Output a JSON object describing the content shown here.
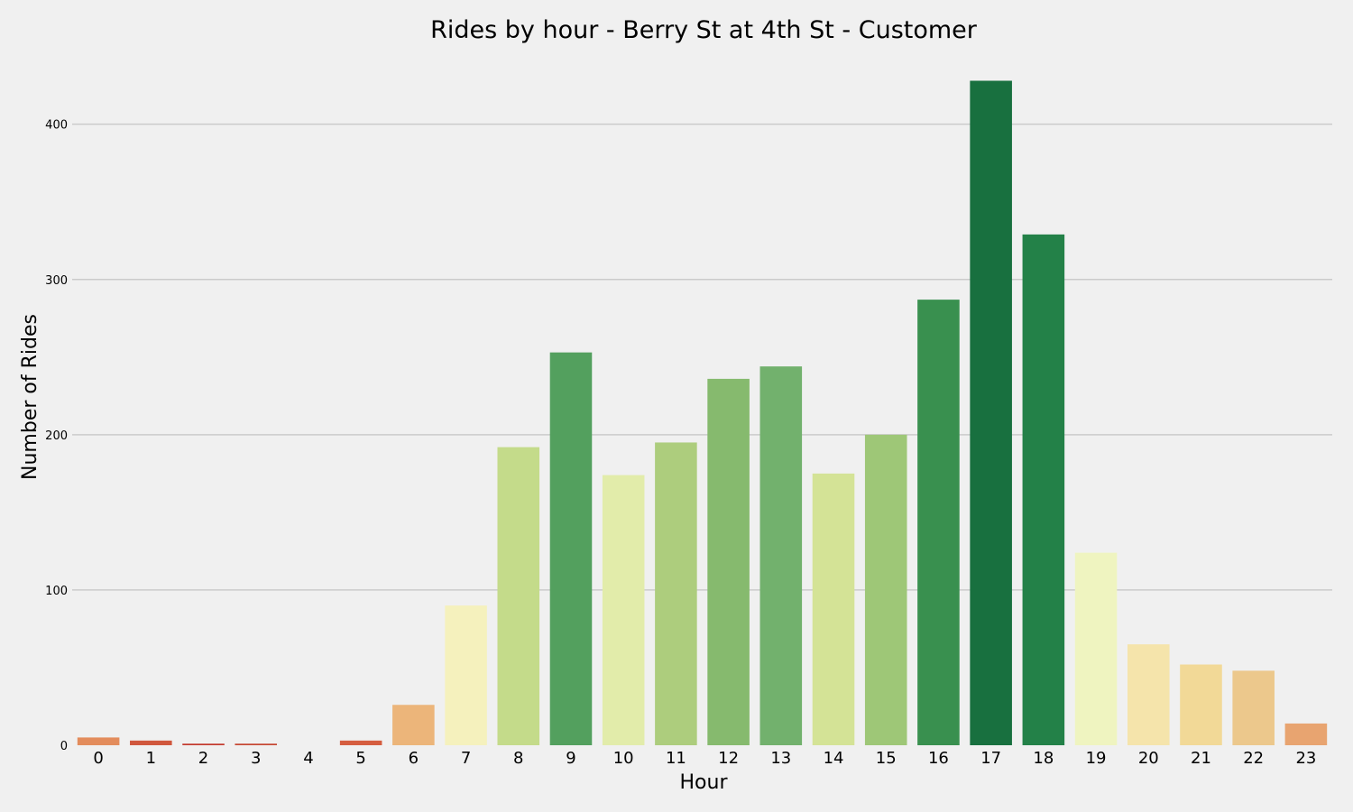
{
  "chart_data": {
    "type": "bar",
    "title": "Rides by hour - Berry St at 4th St - Customer",
    "xlabel": "Hour",
    "ylabel": "Number of Rides",
    "categories": [
      "0",
      "1",
      "2",
      "3",
      "4",
      "5",
      "6",
      "7",
      "8",
      "9",
      "10",
      "11",
      "12",
      "13",
      "14",
      "15",
      "16",
      "17",
      "18",
      "19",
      "20",
      "21",
      "22",
      "23"
    ],
    "values": [
      5,
      3,
      1,
      1,
      0,
      3,
      26,
      90,
      192,
      253,
      174,
      195,
      236,
      244,
      175,
      200,
      287,
      428,
      329,
      124,
      65,
      52,
      48,
      14
    ],
    "colors": [
      "#e38c5c",
      "#d0573d",
      "#c33b2e",
      "#c64833",
      "#cc503a",
      "#d55d3f",
      "#ecb57a",
      "#f5f1bd",
      "#c4db8a",
      "#53a05e",
      "#e2ecaa",
      "#adcd7d",
      "#86ba6e",
      "#72b16d",
      "#d4e396",
      "#9ec777",
      "#39904f",
      "#18703f",
      "#238148",
      "#eff4c0",
      "#f5e4ab",
      "#f2d997",
      "#ecc88c",
      "#e8a470"
    ],
    "yticks": [
      0,
      100,
      200,
      300,
      400
    ],
    "ylim": [
      0,
      440
    ],
    "grid": true,
    "legend": "none"
  }
}
